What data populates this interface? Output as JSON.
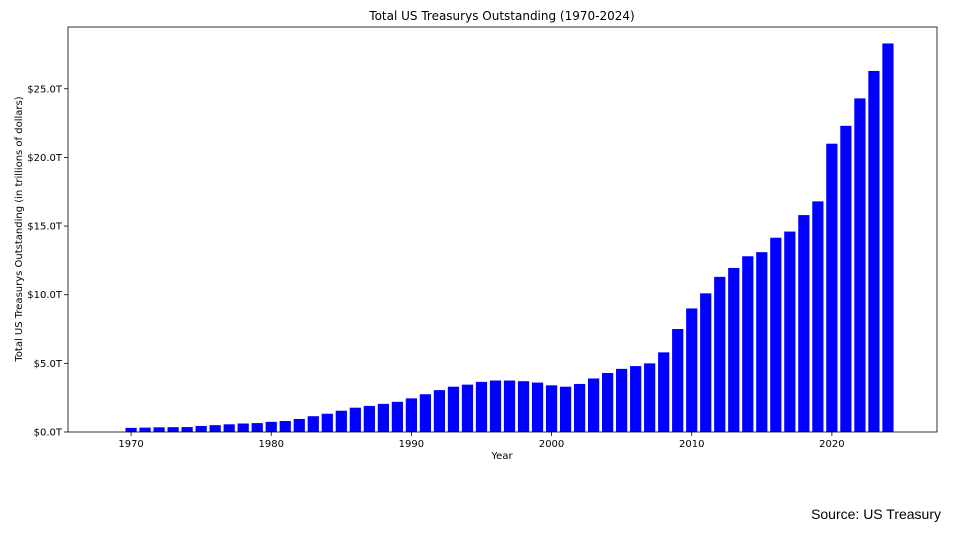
{
  "source_note": "Source: US Treasury",
  "chart_data": {
    "type": "bar",
    "title": "Total US Treasurys Outstanding (1970-2024)",
    "xlabel": "Year",
    "ylabel": "Total US Treasurys Outstanding (in trillions of dollars)",
    "bar_color": "#0000ff",
    "grid": false,
    "xlim": [
      1965.5,
      2027.5
    ],
    "ylim": [
      0,
      29.5
    ],
    "x_ticks": [
      1970,
      1980,
      1990,
      2000,
      2010,
      2020
    ],
    "y_ticks": [
      {
        "value": 0,
        "label": "$0.0T"
      },
      {
        "value": 5,
        "label": "$5.0T"
      },
      {
        "value": 10,
        "label": "$10.0T"
      },
      {
        "value": 15,
        "label": "$15.0T"
      },
      {
        "value": 20,
        "label": "$20.0T"
      },
      {
        "value": 25,
        "label": "$25.0T"
      }
    ],
    "x": [
      1970,
      1971,
      1972,
      1973,
      1974,
      1975,
      1976,
      1977,
      1978,
      1979,
      1980,
      1981,
      1982,
      1983,
      1984,
      1985,
      1986,
      1987,
      1988,
      1989,
      1990,
      1991,
      1992,
      1993,
      1994,
      1995,
      1996,
      1997,
      1998,
      1999,
      2000,
      2001,
      2002,
      2003,
      2004,
      2005,
      2006,
      2007,
      2008,
      2009,
      2010,
      2011,
      2012,
      2013,
      2014,
      2015,
      2016,
      2017,
      2018,
      2019,
      2020,
      2021,
      2022,
      2023,
      2024
    ],
    "values": [
      0.3,
      0.32,
      0.34,
      0.35,
      0.36,
      0.44,
      0.5,
      0.56,
      0.62,
      0.65,
      0.74,
      0.8,
      0.95,
      1.15,
      1.33,
      1.55,
      1.77,
      1.9,
      2.05,
      2.2,
      2.45,
      2.75,
      3.05,
      3.3,
      3.45,
      3.65,
      3.75,
      3.75,
      3.7,
      3.6,
      3.4,
      3.3,
      3.5,
      3.9,
      4.3,
      4.6,
      4.8,
      5.0,
      5.8,
      7.5,
      9.0,
      10.1,
      11.3,
      11.95,
      12.8,
      13.1,
      14.15,
      14.6,
      15.8,
      16.8,
      21.0,
      22.3,
      24.3,
      26.3,
      28.3
    ]
  }
}
